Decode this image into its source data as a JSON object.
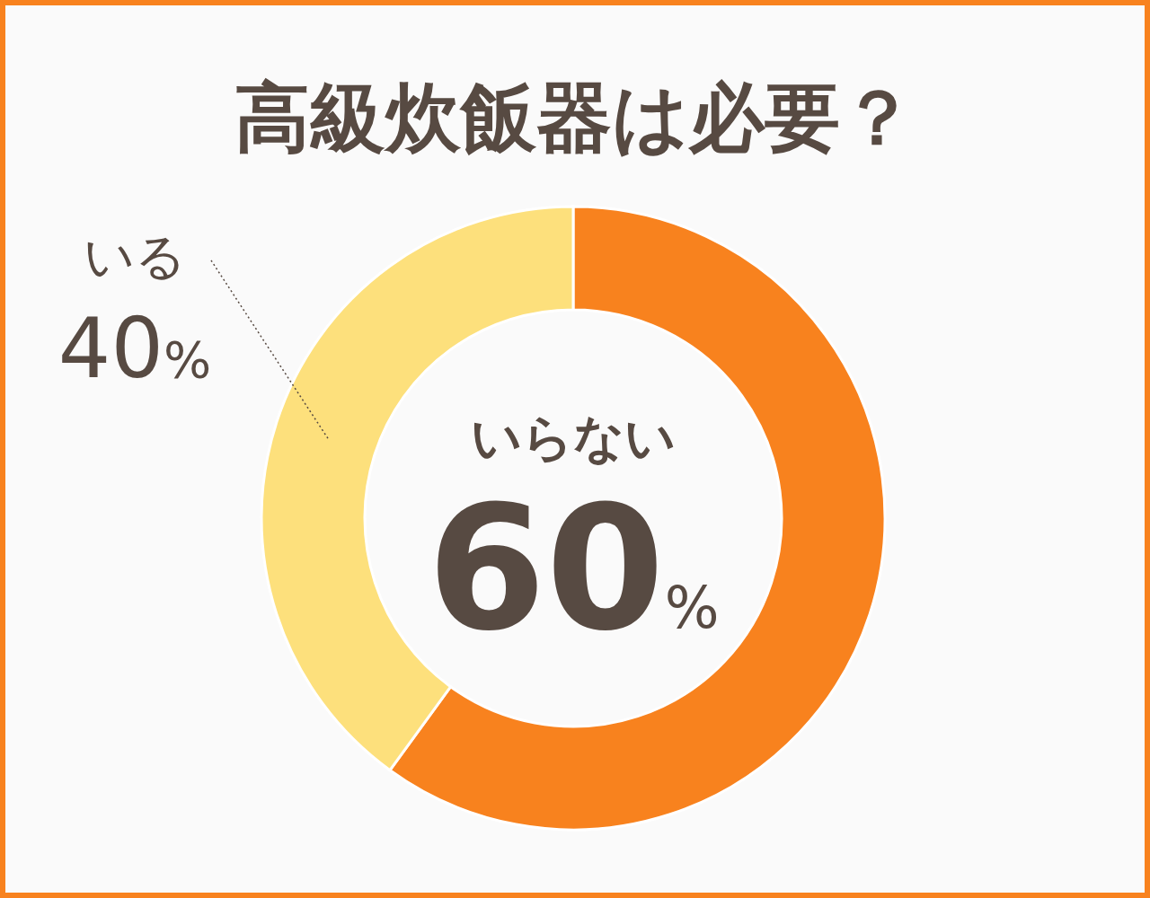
{
  "chart_data": {
    "type": "donut",
    "title": "高級炊飯器は必要？",
    "categories": [
      "いらない",
      "いる"
    ],
    "values": [
      60,
      40
    ],
    "value_labels": [
      "60%",
      "40%"
    ],
    "colors": [
      "#f8821e",
      "#fde07c"
    ],
    "legend": false
  }
}
